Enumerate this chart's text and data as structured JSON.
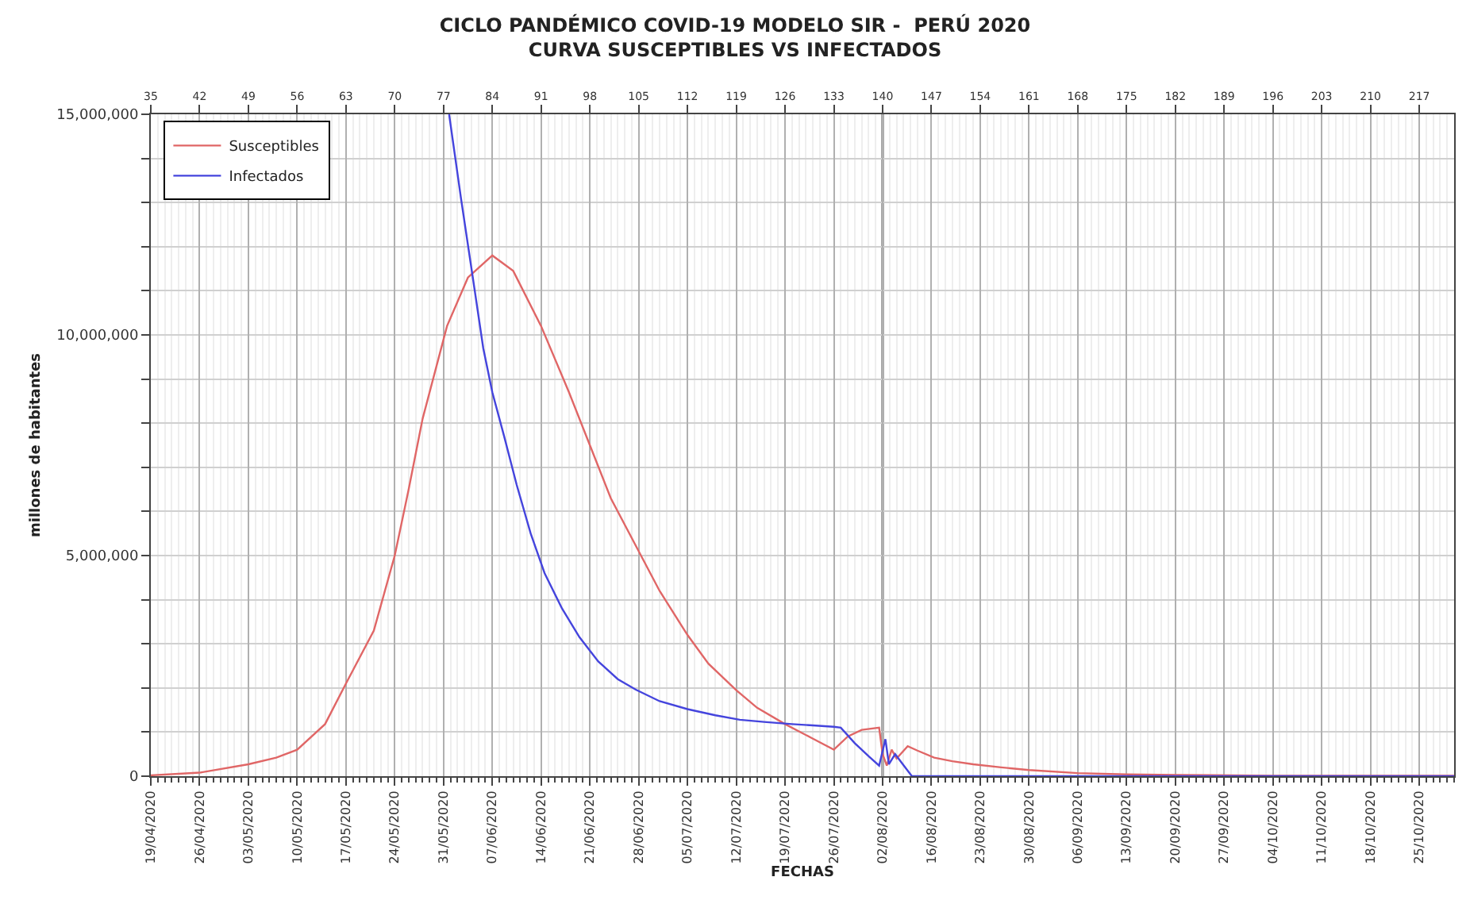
{
  "chart_data": {
    "type": "line",
    "title": "CICLO PANDÉMICO COVID-19 MODELO SIR -  PERÚ 2020\nCURVA SUSCEPTIBLES VS INFECTADOS",
    "x2label": "FECHAS",
    "ylabel": "millones de habitantes",
    "series": [
      {
        "name": "Susceptibles",
        "color": "#e06666",
        "x": [
          35,
          42,
          49,
          53,
          56,
          60,
          63,
          67,
          70,
          72,
          74,
          77.5,
          80.5,
          84,
          87,
          91,
          95,
          98,
          101,
          105,
          108,
          112,
          115,
          119,
          122,
          126,
          130,
          133,
          135,
          137,
          139.5,
          140,
          140.6,
          141.3,
          142,
          143.6,
          145,
          147.4,
          150,
          153,
          157,
          161,
          168,
          175,
          182,
          196,
          210,
          222
        ],
        "values": [
          20000,
          80000,
          270000,
          420000,
          600000,
          1180000,
          2100000,
          3300000,
          5000000,
          6500000,
          8100000,
          10200000,
          11300000,
          11800000,
          11450000,
          10200000,
          8700000,
          7500000,
          6300000,
          5100000,
          4200000,
          3200000,
          2550000,
          1950000,
          1550000,
          1180000,
          850000,
          600000,
          900000,
          1050000,
          1100000,
          500000,
          240000,
          600000,
          400000,
          680000,
          580000,
          420000,
          340000,
          270000,
          200000,
          140000,
          70000,
          40000,
          30000,
          10000,
          10000,
          10000
        ]
      },
      {
        "name": "Infectados",
        "color": "#4444dd",
        "x": [
          77.8,
          79.5,
          81.2,
          82.7,
          84,
          85.7,
          87.5,
          89.5,
          91.5,
          94,
          96.5,
          99.2,
          102,
          104.6,
          108,
          112,
          116,
          119.5,
          123,
          127,
          130,
          133,
          134,
          136,
          138,
          139.5,
          140.4,
          140.9,
          141.8,
          142.9,
          144.2,
          150,
          161,
          175,
          196,
          222
        ],
        "values": [
          15000000,
          13100000,
          11300000,
          9700000,
          8700000,
          7700000,
          6600000,
          5500000,
          4600000,
          3800000,
          3150000,
          2600000,
          2200000,
          1960000,
          1700000,
          1520000,
          1380000,
          1280000,
          1230000,
          1180000,
          1150000,
          1120000,
          1100000,
          750000,
          450000,
          240000,
          840000,
          270000,
          500000,
          270000,
          0,
          0,
          0,
          0,
          0,
          0
        ]
      }
    ],
    "xlim": [
      35,
      222
    ],
    "x2ticks": [
      {
        "value": "2020-04-19",
        "label": "19/04/2020"
      },
      {
        "value": "2020-04-26",
        "label": "26/04/2020"
      },
      {
        "value": "2020-05-03",
        "label": "03/05/2020"
      },
      {
        "value": "2020-05-10",
        "label": "10/05/2020"
      },
      {
        "value": "2020-05-17",
        "label": "17/05/2020"
      },
      {
        "value": "2020-05-24",
        "label": "24/05/2020"
      },
      {
        "value": "2020-05-31",
        "label": "31/05/2020"
      },
      {
        "value": "2020-06-07",
        "label": "07/06/2020"
      },
      {
        "value": "2020-06-14",
        "label": "14/06/2020"
      },
      {
        "value": "2020-06-21",
        "label": "21/06/2020"
      },
      {
        "value": "2020-06-28",
        "label": "28/06/2020"
      },
      {
        "value": "2020-07-05",
        "label": "05/07/2020"
      },
      {
        "value": "2020-07-12",
        "label": "12/07/2020"
      },
      {
        "value": "2020-07-19",
        "label": "19/07/2020"
      },
      {
        "value": "2020-07-26",
        "label": "26/07/2020"
      },
      {
        "value": "2020-08-02",
        "label": "02/08/2020"
      },
      {
        "value": "2020-08-09",
        "label": "16/08/2020"
      },
      {
        "value": "2020-08-16",
        "label": "23/08/2020"
      },
      {
        "value": "2020-08-23",
        "label": "30/08/2020"
      },
      {
        "value": "2020-08-30",
        "label": "06/09/2020"
      },
      {
        "value": "2020-09-06",
        "label": "13/09/2020"
      },
      {
        "value": "2020-09-13",
        "label": "20/09/2020"
      },
      {
        "value": "2020-09-20",
        "label": "27/09/2020"
      },
      {
        "value": "2020-09-27",
        "label": "04/10/2020"
      },
      {
        "value": "2020-10-04",
        "label": "11/10/2020"
      },
      {
        "value": "2020-10-11",
        "label": "18/10/2020"
      },
      {
        "value": "2020-10-18",
        "label": "25/10/2020"
      }
    ],
    "x2lim": [
      "2020-04-19",
      "2020-10-23"
    ],
    "xticks": [
      35,
      42,
      49,
      56,
      63,
      70,
      77,
      84,
      91,
      98,
      105,
      112,
      119,
      126,
      133,
      140,
      147,
      154,
      161,
      168,
      175,
      182,
      189,
      196,
      203,
      210,
      217
    ],
    "ylim": [
      0,
      15000000
    ],
    "yticks": [
      {
        "value": 0,
        "label": "0"
      },
      {
        "value": 1000000,
        "label": null
      },
      {
        "value": 2000000,
        "label": null
      },
      {
        "value": 3000000,
        "label": null
      },
      {
        "value": 4000000,
        "label": null
      },
      {
        "value": 5000000,
        "label": "5,000,000"
      },
      {
        "value": 6000000,
        "label": null
      },
      {
        "value": 7000000,
        "label": null
      },
      {
        "value": 8000000,
        "label": null
      },
      {
        "value": 9000000,
        "label": null
      },
      {
        "value": 10000000,
        "label": "10,000,000"
      },
      {
        "value": 11000000,
        "label": null
      },
      {
        "value": 12000000,
        "label": null
      },
      {
        "value": 13000000,
        "label": null
      },
      {
        "value": 14000000,
        "label": null
      },
      {
        "value": 15000000,
        "label": "15,000,000"
      }
    ],
    "ref_lines": [
      {
        "axis": "x",
        "value": 140,
        "color": "#555555"
      }
    ],
    "grid": true,
    "legend": "top left",
    "marker": "none",
    "line_style": "solid"
  }
}
